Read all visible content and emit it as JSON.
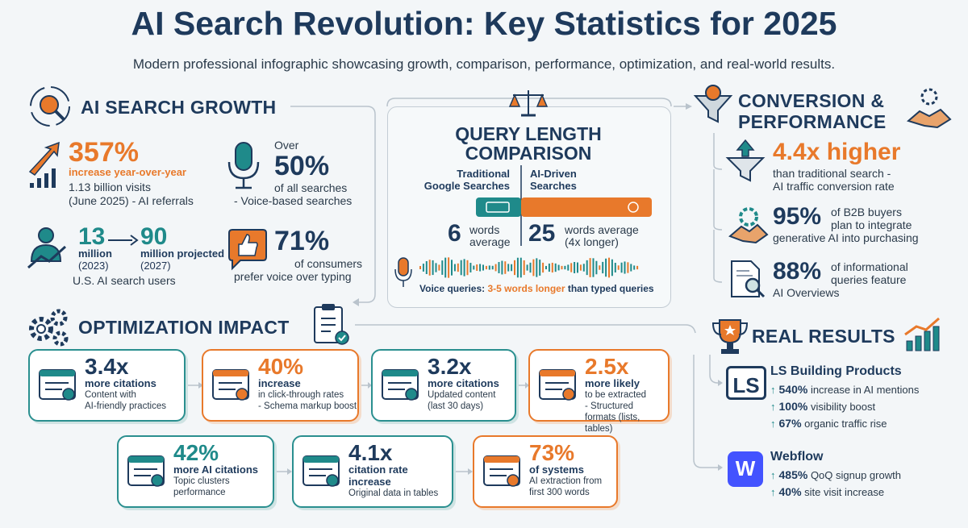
{
  "header": {
    "title": "AI Search Revolution: Key Statistics for 2025",
    "subtitle": "Modern professional infographic showcasing growth, comparison, performance, optimization, and real-world results."
  },
  "growth": {
    "title": "AI SEARCH GROWTH",
    "yoy": {
      "value": "357%",
      "label": "increase year-over-year",
      "detail": [
        "1.13 billion visits",
        "(June 2025) - AI referrals"
      ]
    },
    "voice": {
      "prefix": "Over",
      "value": "50%",
      "detail": [
        "of all searches",
        "- Voice-based searches"
      ]
    },
    "users": {
      "from": {
        "value": "13",
        "unit": "million",
        "year": "(2023)"
      },
      "to": {
        "value": "90",
        "unit": "million projected",
        "year": "(2027)"
      },
      "label": "U.S. AI search users"
    },
    "preference": {
      "value": "71%",
      "detail": [
        "of consumers",
        "prefer voice over typing"
      ]
    }
  },
  "query": {
    "title": [
      "QUERY LENGTH",
      "COMPARISON"
    ],
    "traditional": {
      "label": [
        "Traditional",
        "Google Searches"
      ],
      "value": "6",
      "unit": [
        "words",
        "average"
      ]
    },
    "ai": {
      "label": [
        "AI-Driven",
        "Searches"
      ],
      "value": "25",
      "unit": [
        "words average",
        "(4x longer)"
      ]
    },
    "voice_note": [
      "Voice queries:",
      "3-5 words longer",
      "than typed queries"
    ]
  },
  "conversion": {
    "title": [
      "CONVERSION &",
      "PERFORMANCE"
    ],
    "stats": [
      {
        "value": "4.4x higher",
        "detail": [
          "than traditional search -",
          "AI traffic conversion rate"
        ]
      },
      {
        "value": "95%",
        "detail": [
          "of B2B buyers",
          "plan to integrate",
          "generative AI into purchasing"
        ]
      },
      {
        "value": "88%",
        "detail": [
          "of informational",
          "queries feature",
          "AI Overviews"
        ]
      }
    ]
  },
  "optimization": {
    "title": "OPTIMIZATION IMPACT",
    "cards": [
      {
        "value": "3.4x",
        "label": [
          "more citations"
        ],
        "detail": [
          "Content with",
          "AI-friendly practices"
        ]
      },
      {
        "value": "40%",
        "label": [
          "increase"
        ],
        "detail": [
          "in click-through rates",
          "- Schema markup boost"
        ]
      },
      {
        "value": "3.2x",
        "label": [
          "more citations"
        ],
        "detail": [
          "Updated content",
          "(last 30 days)"
        ]
      },
      {
        "value": "2.5x",
        "label": [
          "more likely"
        ],
        "detail": [
          "to be extracted",
          "- Structured",
          "formats (lists, tables)"
        ]
      },
      {
        "value": "42%",
        "label": [
          "more AI citations"
        ],
        "detail": [
          "Topic clusters",
          "performance"
        ]
      },
      {
        "value": "4.1x",
        "label": [
          "citation rate",
          "increase"
        ],
        "detail": [
          "Original data in tables"
        ]
      },
      {
        "value": "73%",
        "label": [
          "of systems"
        ],
        "detail": [
          "AI extraction from",
          "first 300 words"
        ]
      }
    ]
  },
  "results": {
    "title": "REAL RESULTS",
    "companies": [
      {
        "logo": "LS",
        "name": "LS Building Products",
        "items": [
          {
            "value": "540%",
            "label": "increase in AI mentions"
          },
          {
            "value": "100%",
            "label": "visibility boost"
          },
          {
            "value": "67%",
            "label": "organic traffic rise"
          }
        ]
      },
      {
        "logo": "W",
        "name": "Webflow",
        "items": [
          {
            "value": "485%",
            "label": "QoQ signup growth"
          },
          {
            "value": "40%",
            "label": "site visit increase"
          }
        ]
      }
    ]
  }
}
